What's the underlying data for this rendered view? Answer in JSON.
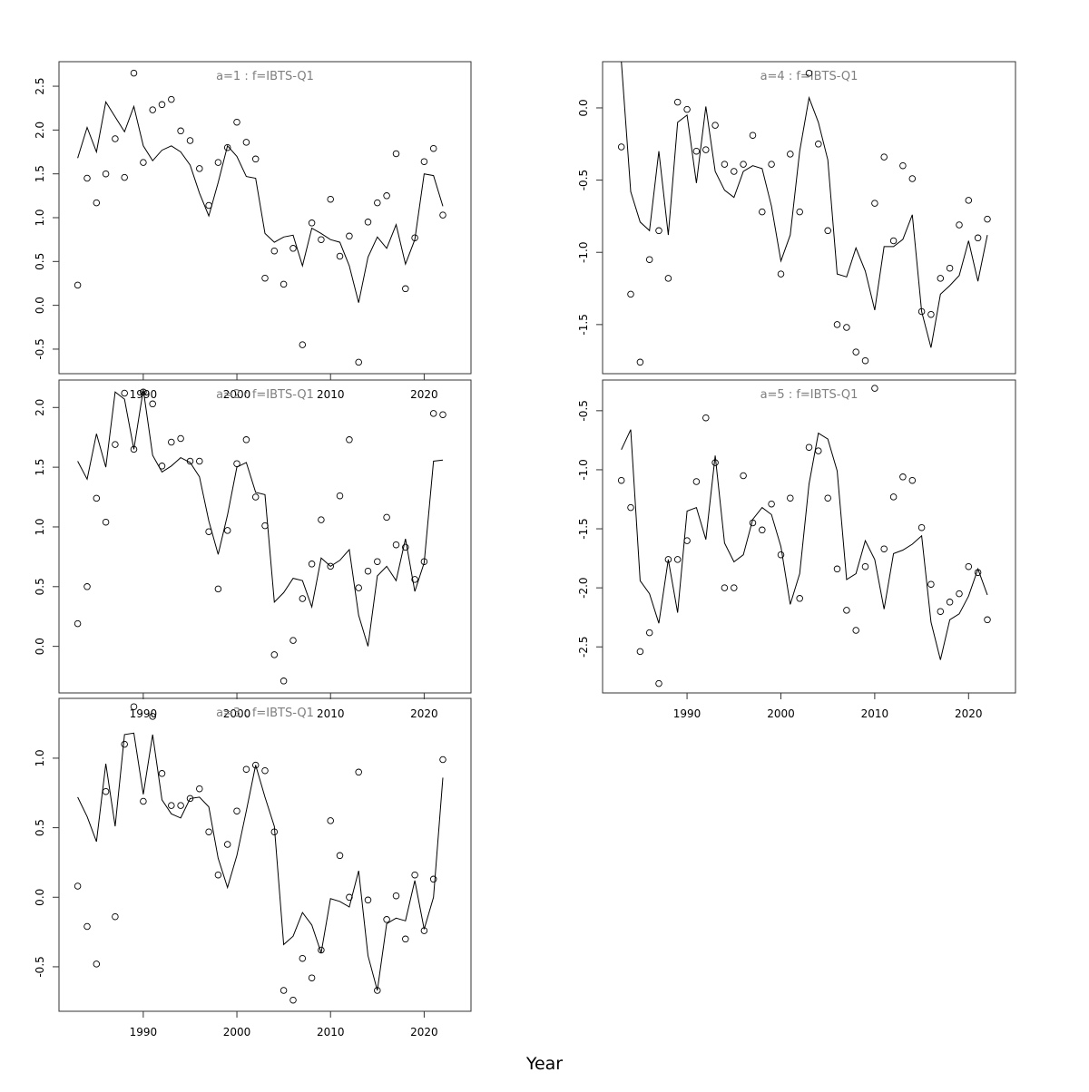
{
  "xlabel": "Year",
  "chart_data": [
    {
      "type": "line",
      "title": "a=1 : f=IBTS-Q1",
      "xlim": [
        1981,
        2025
      ],
      "ylim": [
        -0.78,
        2.78
      ],
      "x_ticks": [
        1990,
        2000,
        2010,
        2020
      ],
      "y_ticks": [
        -0.5,
        0.0,
        0.5,
        1.0,
        1.5,
        2.0,
        2.5
      ],
      "x": [
        1983,
        1984,
        1985,
        1986,
        1987,
        1988,
        1989,
        1990,
        1991,
        1992,
        1993,
        1994,
        1995,
        1996,
        1997,
        1998,
        1999,
        2000,
        2001,
        2002,
        2003,
        2004,
        2005,
        2006,
        2007,
        2008,
        2009,
        2010,
        2011,
        2012,
        2013,
        2014,
        2015,
        2016,
        2017,
        2018,
        2019,
        2020,
        2021,
        2022
      ],
      "series": [
        {
          "style": "line",
          "values": [
            1.68,
            2.03,
            1.75,
            2.32,
            2.15,
            1.98,
            2.27,
            1.82,
            1.65,
            1.77,
            1.82,
            1.75,
            1.6,
            1.28,
            1.02,
            1.4,
            1.82,
            1.7,
            1.47,
            1.45,
            0.82,
            0.72,
            0.78,
            0.8,
            0.45,
            0.88,
            0.82,
            0.75,
            0.72,
            0.45,
            0.03,
            0.55,
            0.78,
            0.65,
            0.92,
            0.47,
            0.75,
            1.5,
            1.48,
            1.13
          ]
        },
        {
          "style": "points",
          "values": [
            0.23,
            1.45,
            1.17,
            1.5,
            1.9,
            1.46,
            2.65,
            1.63,
            2.23,
            2.29,
            2.35,
            1.99,
            1.88,
            1.56,
            1.14,
            1.63,
            1.8,
            2.09,
            1.86,
            1.67,
            0.31,
            0.62,
            0.24,
            0.65,
            -0.45,
            0.94,
            0.75,
            1.21,
            0.56,
            0.79,
            -0.65,
            0.95,
            1.17,
            1.25,
            1.73,
            0.19,
            0.77,
            1.64,
            1.79,
            1.03
          ]
        }
      ]
    },
    {
      "type": "line",
      "title": "a=2 : f=IBTS-Q1",
      "xlim": [
        1981,
        2025
      ],
      "ylim": [
        -0.39,
        2.23
      ],
      "x_ticks": [
        1990,
        2000,
        2010,
        2020
      ],
      "y_ticks": [
        0.0,
        0.5,
        1.0,
        1.5,
        2.0
      ],
      "x": [
        1983,
        1984,
        1985,
        1986,
        1987,
        1988,
        1989,
        1990,
        1991,
        1992,
        1993,
        1994,
        1995,
        1996,
        1997,
        1998,
        1999,
        2000,
        2001,
        2002,
        2003,
        2004,
        2005,
        2006,
        2007,
        2008,
        2009,
        2010,
        2011,
        2012,
        2013,
        2014,
        2015,
        2016,
        2017,
        2018,
        2019,
        2020,
        2021,
        2022
      ],
      "series": [
        {
          "style": "line",
          "values": [
            1.55,
            1.4,
            1.78,
            1.5,
            2.13,
            2.07,
            1.65,
            2.15,
            1.6,
            1.46,
            1.51,
            1.58,
            1.54,
            1.42,
            1.05,
            0.77,
            1.1,
            1.5,
            1.54,
            1.29,
            1.27,
            0.37,
            0.45,
            0.57,
            0.55,
            0.33,
            0.74,
            0.67,
            0.72,
            0.81,
            0.26,
            0.0,
            0.59,
            0.67,
            0.55,
            0.9,
            0.46,
            0.7,
            1.55,
            1.56
          ]
        },
        {
          "style": "points",
          "values": [
            0.19,
            0.5,
            1.24,
            1.04,
            1.69,
            2.12,
            1.65,
            2.13,
            2.03,
            1.51,
            1.71,
            1.74,
            1.55,
            1.55,
            0.96,
            0.48,
            0.97,
            1.53,
            1.73,
            1.25,
            1.01,
            -0.07,
            -0.29,
            0.05,
            0.4,
            0.69,
            1.06,
            0.67,
            1.26,
            1.73,
            0.49,
            0.63,
            0.71,
            1.08,
            0.85,
            0.83,
            0.56,
            0.71,
            1.95,
            1.94
          ]
        }
      ]
    },
    {
      "type": "line",
      "title": "a=3 : f=IBTS-Q1",
      "xlim": [
        1981,
        2025
      ],
      "ylim": [
        -0.82,
        1.43
      ],
      "x_ticks": [
        1990,
        2000,
        2010,
        2020
      ],
      "y_ticks": [
        -0.5,
        0.0,
        0.5,
        1.0
      ],
      "x": [
        1983,
        1984,
        1985,
        1986,
        1987,
        1988,
        1989,
        1990,
        1991,
        1992,
        1993,
        1994,
        1995,
        1996,
        1997,
        1998,
        1999,
        2000,
        2001,
        2002,
        2003,
        2004,
        2005,
        2006,
        2007,
        2008,
        2009,
        2010,
        2011,
        2012,
        2013,
        2014,
        2015,
        2016,
        2017,
        2018,
        2019,
        2020,
        2021,
        2022
      ],
      "series": [
        {
          "style": "line",
          "values": [
            0.72,
            0.58,
            0.4,
            0.96,
            0.51,
            1.17,
            1.18,
            0.74,
            1.17,
            0.7,
            0.6,
            0.57,
            0.71,
            0.72,
            0.65,
            0.28,
            0.07,
            0.3,
            0.62,
            0.95,
            0.72,
            0.51,
            -0.34,
            -0.28,
            -0.11,
            -0.2,
            -0.4,
            -0.01,
            -0.03,
            -0.07,
            0.19,
            -0.42,
            -0.67,
            -0.19,
            -0.15,
            -0.17,
            0.12,
            -0.23,
            0.0,
            0.86
          ]
        },
        {
          "style": "points",
          "values": [
            0.08,
            -0.21,
            -0.48,
            0.76,
            -0.14,
            1.1,
            1.37,
            0.69,
            1.3,
            0.89,
            0.66,
            0.66,
            0.71,
            0.78,
            0.47,
            0.16,
            0.38,
            0.62,
            0.92,
            0.95,
            0.91,
            0.47,
            -0.67,
            -0.74,
            -0.44,
            -0.58,
            -0.38,
            0.55,
            0.3,
            0.0,
            0.9,
            -0.02,
            -0.67,
            -0.16,
            0.01,
            -0.3,
            0.16,
            -0.24,
            0.13,
            0.99
          ]
        }
      ]
    },
    {
      "type": "line",
      "title": "a=4 : f=IBTS-Q1",
      "xlim": [
        1981,
        2025
      ],
      "ylim": [
        -1.84,
        0.32
      ],
      "x_ticks": [],
      "y_ticks": [
        -1.5,
        -1.0,
        -0.5,
        0.0
      ],
      "x": [
        1983,
        1984,
        1985,
        1986,
        1987,
        1988,
        1989,
        1990,
        1991,
        1992,
        1993,
        1994,
        1995,
        1996,
        1997,
        1998,
        1999,
        2000,
        2001,
        2002,
        2003,
        2004,
        2005,
        2006,
        2007,
        2008,
        2009,
        2010,
        2011,
        2012,
        2013,
        2014,
        2015,
        2016,
        2017,
        2018,
        2019,
        2020,
        2021,
        2022
      ],
      "series": [
        {
          "style": "line",
          "values": [
            0.32,
            -0.58,
            -0.79,
            -0.85,
            -0.3,
            -0.88,
            -0.1,
            -0.05,
            -0.52,
            0.01,
            -0.44,
            -0.57,
            -0.62,
            -0.44,
            -0.4,
            -0.42,
            -0.68,
            -1.06,
            -0.88,
            -0.3,
            0.07,
            -0.1,
            -0.36,
            -1.15,
            -1.17,
            -0.97,
            -1.13,
            -1.4,
            -0.96,
            -0.96,
            -0.91,
            -0.74,
            -1.41,
            -1.66,
            -1.29,
            -1.23,
            -1.16,
            -0.92,
            -1.2,
            -0.88
          ]
        },
        {
          "style": "points",
          "values": [
            -0.27,
            -1.29,
            -1.76,
            -1.05,
            -0.85,
            -1.18,
            0.04,
            -0.01,
            -0.3,
            -0.29,
            -0.12,
            -0.39,
            -0.44,
            -0.39,
            -0.19,
            -0.72,
            -0.39,
            -1.15,
            -0.32,
            -0.72,
            0.24,
            -0.25,
            -0.85,
            -1.5,
            -1.52,
            -1.69,
            -1.75,
            -0.66,
            -0.34,
            -0.92,
            -0.4,
            -0.49,
            -1.41,
            -1.43,
            -1.18,
            -1.11,
            -0.81,
            -0.64,
            -0.9,
            -0.77
          ]
        }
      ]
    },
    {
      "type": "line",
      "title": "a=5 : f=IBTS-Q1",
      "xlim": [
        1981,
        2025
      ],
      "ylim": [
        -2.89,
        -0.24
      ],
      "x_ticks": [
        1990,
        2000,
        2010,
        2020
      ],
      "y_ticks": [
        -2.5,
        -2.0,
        -1.5,
        -1.0,
        -0.5
      ],
      "x": [
        1983,
        1984,
        1985,
        1986,
        1987,
        1988,
        1989,
        1990,
        1991,
        1992,
        1993,
        1994,
        1995,
        1996,
        1997,
        1998,
        1999,
        2000,
        2001,
        2002,
        2003,
        2004,
        2005,
        2006,
        2007,
        2008,
        2009,
        2010,
        2011,
        2012,
        2013,
        2014,
        2015,
        2016,
        2017,
        2018,
        2019,
        2020,
        2021,
        2022
      ],
      "series": [
        {
          "style": "line",
          "values": [
            -0.83,
            -0.66,
            -1.94,
            -2.05,
            -2.3,
            -1.76,
            -2.21,
            -1.35,
            -1.32,
            -1.59,
            -0.88,
            -1.62,
            -1.78,
            -1.72,
            -1.42,
            -1.32,
            -1.38,
            -1.65,
            -2.14,
            -1.88,
            -1.12,
            -0.69,
            -0.74,
            -1.01,
            -1.93,
            -1.88,
            -1.6,
            -1.76,
            -2.18,
            -1.71,
            -1.68,
            -1.63,
            -1.56,
            -2.29,
            -2.61,
            -2.27,
            -2.22,
            -2.07,
            -1.84,
            -2.06
          ]
        },
        {
          "style": "points",
          "values": [
            -1.09,
            -1.32,
            -2.54,
            -2.38,
            -2.81,
            -1.76,
            -1.76,
            -1.6,
            -1.1,
            -0.56,
            -0.94,
            -2.0,
            -2.0,
            -1.05,
            -1.45,
            -1.51,
            -1.29,
            -1.72,
            -1.24,
            -2.09,
            -0.81,
            -0.84,
            -1.24,
            -1.84,
            -2.19,
            -2.36,
            -1.82,
            -0.31,
            -1.67,
            -1.23,
            -1.06,
            -1.09,
            -1.49,
            -1.97,
            -2.2,
            -2.12,
            -2.05,
            -1.82,
            -1.87,
            -2.27
          ]
        }
      ]
    }
  ]
}
